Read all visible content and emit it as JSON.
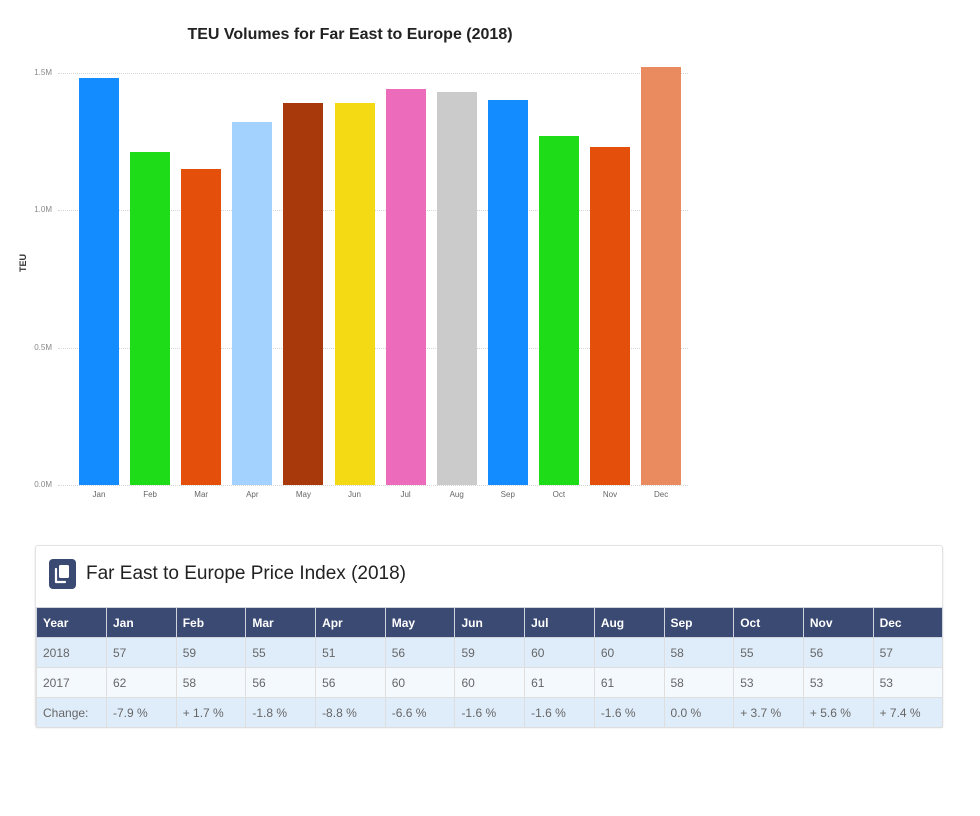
{
  "chart_data": {
    "type": "bar",
    "title": "TEU Volumes for Far East to Europe (2018)",
    "xlabel": "",
    "ylabel": "TEU",
    "ylim": [
      0,
      1.5
    ],
    "yticks": [
      "0.0M",
      "0.5M",
      "1.0M",
      "1.5M"
    ],
    "ytick_values": [
      0,
      0.5,
      1.0,
      1.5
    ],
    "grid": true,
    "legend": null,
    "categories": [
      "Jan",
      "Feb",
      "Mar",
      "Apr",
      "May",
      "Jun",
      "Jul",
      "Aug",
      "Sep",
      "Oct",
      "Nov",
      "Dec"
    ],
    "values": [
      1.48,
      1.21,
      1.15,
      1.32,
      1.39,
      1.39,
      1.44,
      1.43,
      1.4,
      1.27,
      1.23,
      1.52
    ],
    "unit": "M",
    "colors": [
      "#138cff",
      "#1fdc18",
      "#e44f0c",
      "#a3d2fe",
      "#a8390b",
      "#f3da15",
      "#ec6cbb",
      "#cbcbcb",
      "#138cff",
      "#1fdc18",
      "#e44f0c",
      "#ea8a5f"
    ]
  },
  "table": {
    "title": "Far East to Europe Price Index (2018)",
    "icon": "copy-icon",
    "header_color": "#3b4a73",
    "columns": [
      "Year",
      "Jan",
      "Feb",
      "Mar",
      "Apr",
      "May",
      "Jun",
      "Jul",
      "Aug",
      "Sep",
      "Oct",
      "Nov",
      "Dec"
    ],
    "rows": [
      [
        "2018",
        "57",
        "59",
        "55",
        "51",
        "56",
        "59",
        "60",
        "60",
        "58",
        "55",
        "56",
        "57"
      ],
      [
        "2017",
        "62",
        "58",
        "56",
        "56",
        "60",
        "60",
        "61",
        "61",
        "58",
        "53",
        "53",
        "53"
      ],
      [
        "Change:",
        "-7.9 %",
        "+ 1.7 %",
        "-1.8 %",
        "-8.8 %",
        "-6.6 %",
        "-1.6 %",
        "-1.6 %",
        "-1.6 %",
        "0.0 %",
        "+ 3.7 %",
        "+ 5.6 %",
        "+ 7.4 %"
      ]
    ]
  }
}
